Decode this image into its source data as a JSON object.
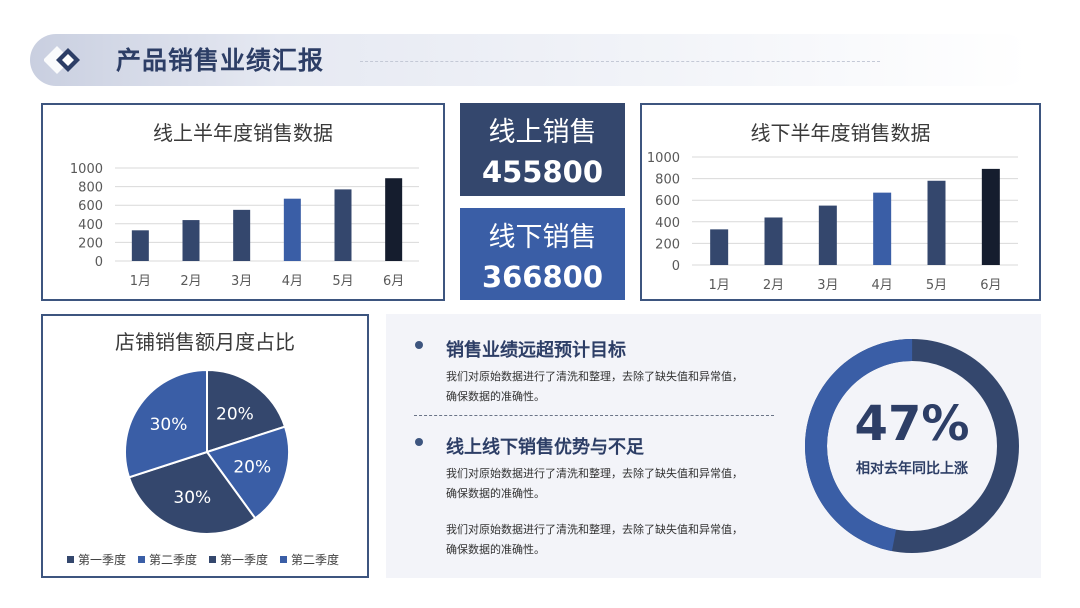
{
  "page_title": "产品销售业绩汇报",
  "online_box": {
    "label": "线上销售",
    "value": "455800",
    "color": "#34476d"
  },
  "offline_box": {
    "label": "线下销售",
    "value": "366800",
    "color": "#3a5ea6"
  },
  "info": {
    "section1": {
      "heading": "销售业绩远超预计目标",
      "text_line1": "我们对原始数据进行了清洗和整理，去除了缺失值和异常值，",
      "text_line2": "确保数据的准确性。"
    },
    "section2": {
      "heading": "线上线下销售优势与不足",
      "p1_line1": "我们对原始数据进行了清洗和整理，去除了缺失值和异常值，",
      "p1_line2": "确保数据的准确性。",
      "p2_line1": "我们对原始数据进行了清洗和整理，去除了缺失值和异常值，",
      "p2_line2": "确保数据的准确性。"
    }
  },
  "gauge": {
    "value_label": "47%",
    "value": 0.47,
    "caption": "相对去年同比上涨",
    "fill_color": "#3a5ea6",
    "rest_color": "#34476d"
  },
  "chart_data": [
    {
      "type": "bar",
      "title": "线上半年度销售数据",
      "categories": [
        "1月",
        "2月",
        "3月",
        "4月",
        "5月",
        "6月"
      ],
      "values": [
        330,
        440,
        550,
        670,
        770,
        890
      ],
      "colors": [
        "#34476d",
        "#34476d",
        "#34476d",
        "#3a5ea6",
        "#34476d",
        "#151d2e"
      ],
      "ylim": [
        0,
        1000
      ],
      "yticks": [
        0,
        200,
        400,
        600,
        800,
        1000
      ],
      "grid": true
    },
    {
      "type": "bar",
      "title": "线下半年度销售数据",
      "categories": [
        "1月",
        "2月",
        "3月",
        "4月",
        "5月",
        "6月"
      ],
      "values": [
        330,
        440,
        550,
        670,
        780,
        890
      ],
      "colors": [
        "#34476d",
        "#34476d",
        "#34476d",
        "#3a5ea6",
        "#34476d",
        "#151d2e"
      ],
      "ylim": [
        0,
        1000
      ],
      "yticks": [
        0,
        200,
        400,
        600,
        800,
        1000
      ],
      "grid": true
    },
    {
      "type": "pie",
      "title": "店铺销售额月度占比",
      "labels": [
        "第一季度",
        "第二季度",
        "第一季度",
        "第二季度"
      ],
      "values": [
        20,
        20,
        30,
        30
      ],
      "value_labels": [
        "20%",
        "20%",
        "30%",
        "30%"
      ],
      "colors": [
        "#34476d",
        "#3a5ea6",
        "#34476d",
        "#3a5ea6"
      ],
      "legend": "bottom"
    }
  ]
}
